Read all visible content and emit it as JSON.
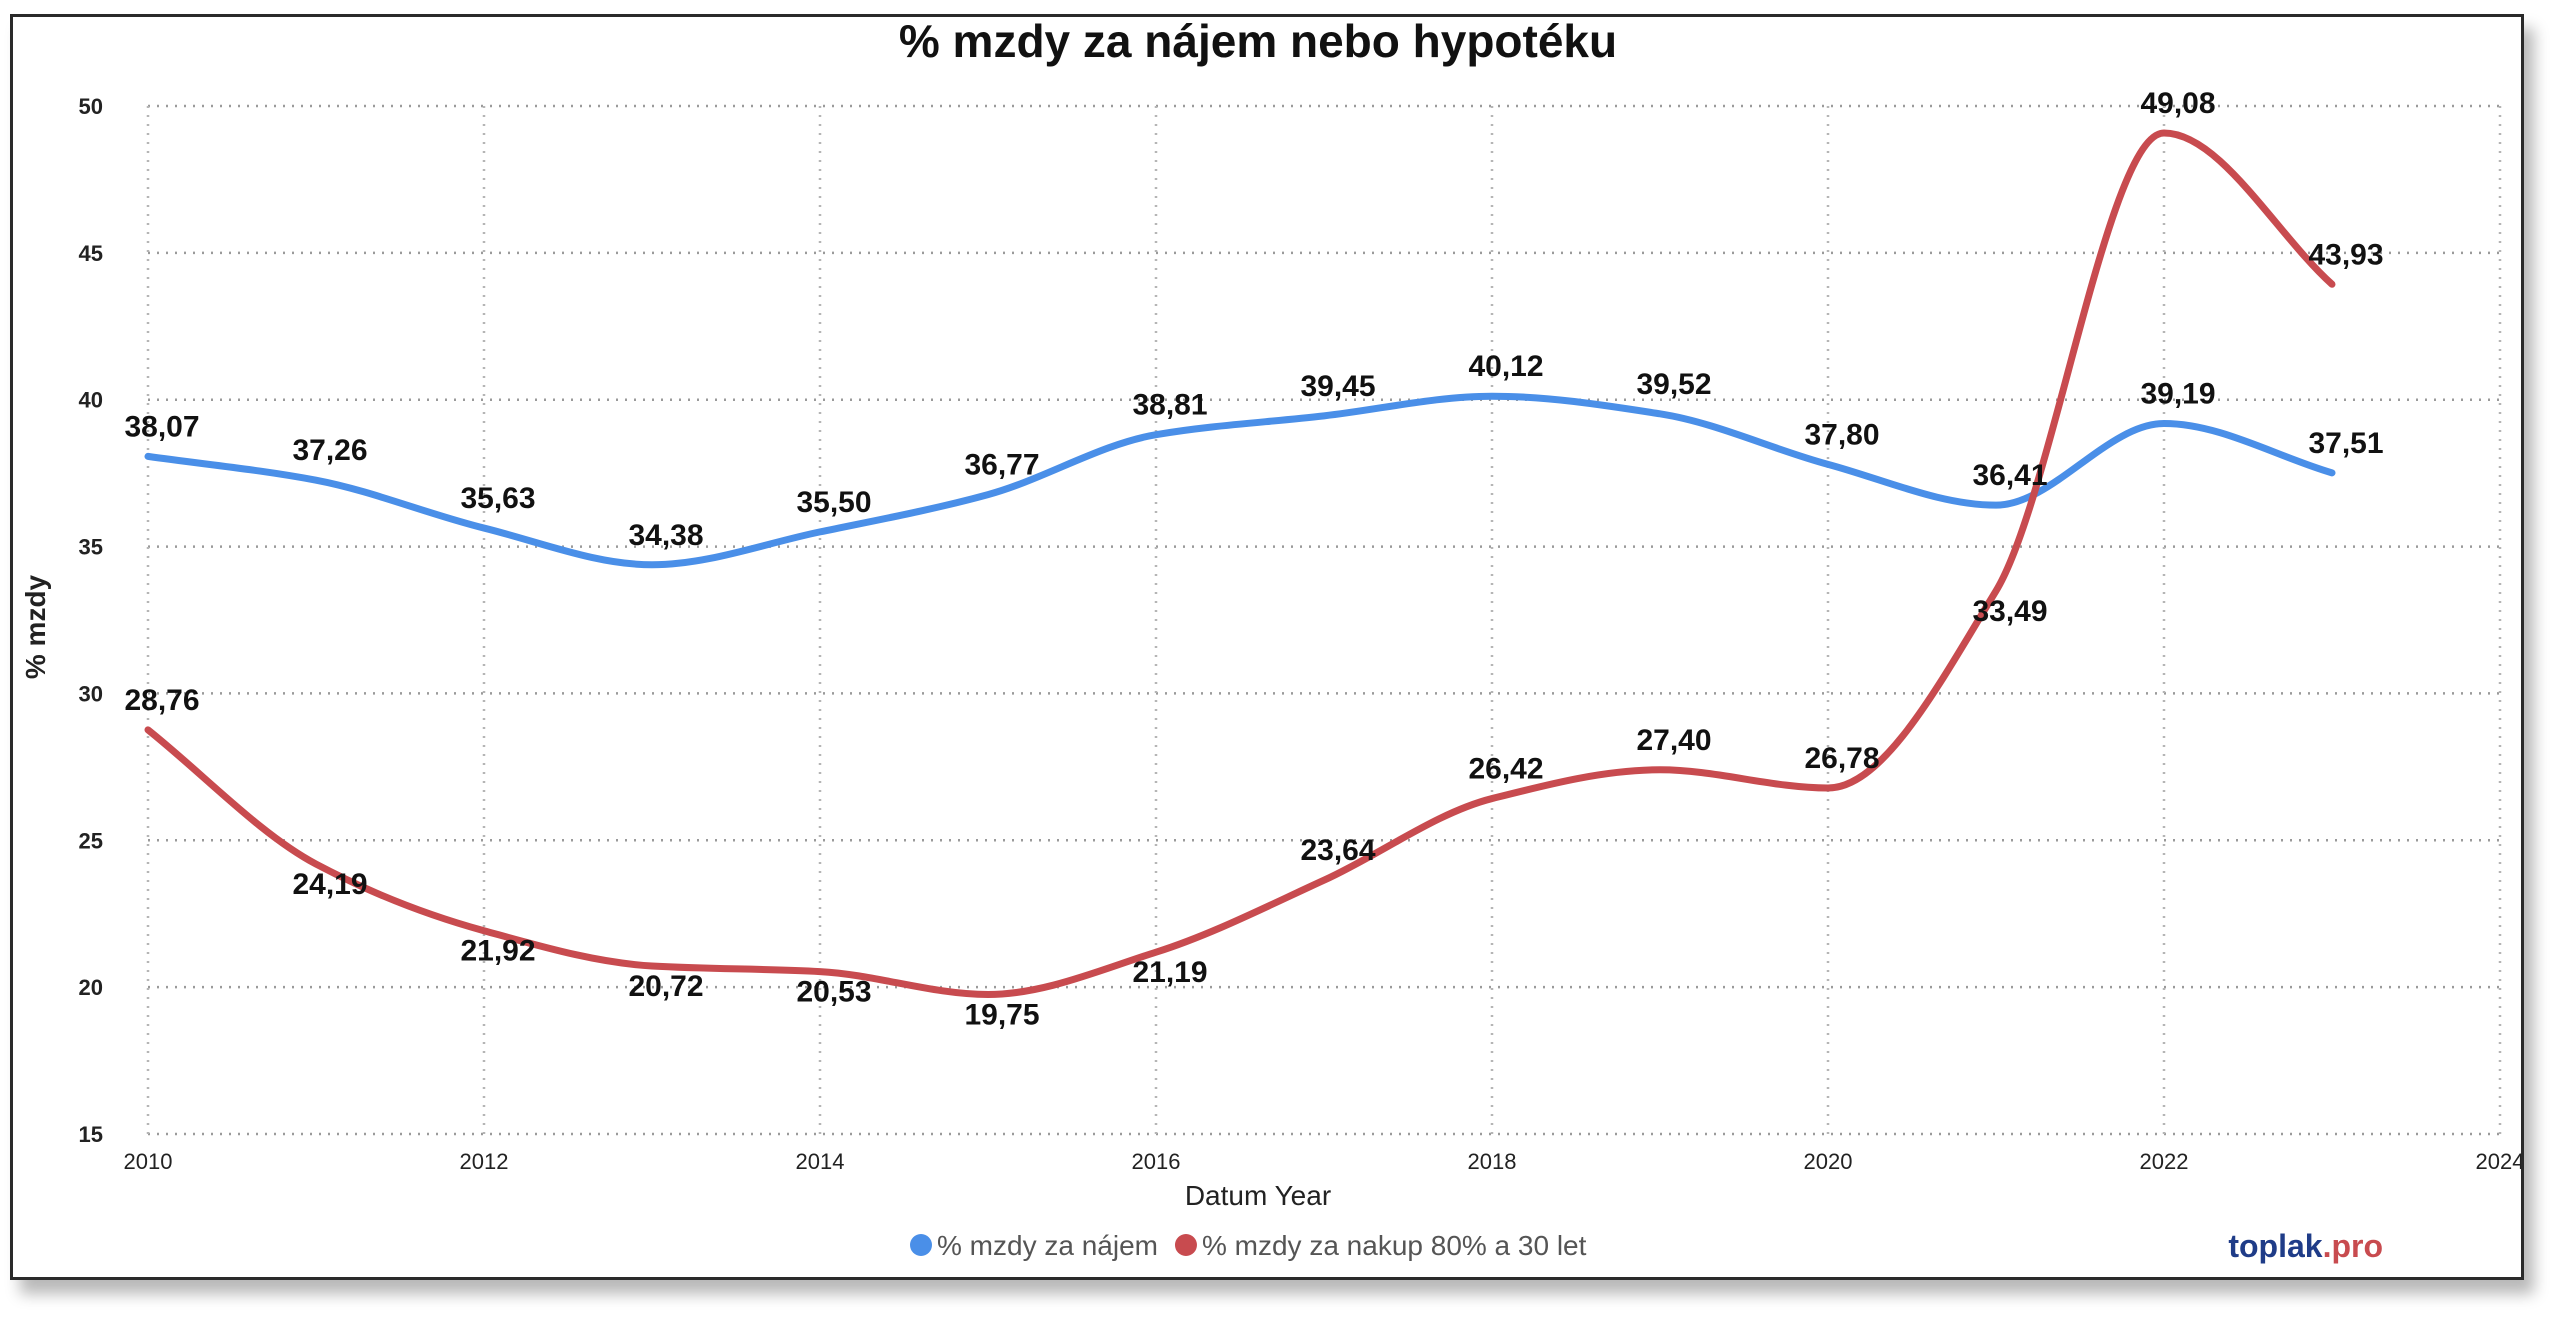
{
  "chart_data": {
    "type": "line",
    "title": "% mzdy za nájem nebo hypotéku",
    "xlabel": "Datum Year",
    "ylabel": "% mzdy",
    "x": [
      2010,
      2011,
      2012,
      2013,
      2014,
      2015,
      2016,
      2017,
      2018,
      2019,
      2020,
      2021,
      2022,
      2023
    ],
    "xlim": [
      2010,
      2024
    ],
    "x_ticks": [
      "2010",
      "2012",
      "2014",
      "2016",
      "2018",
      "2020",
      "2022",
      "2024"
    ],
    "ylim": [
      15,
      50
    ],
    "y_ticks": [
      "15",
      "20",
      "25",
      "30",
      "35",
      "40",
      "45",
      "50"
    ],
    "grid": true,
    "legend_position": "bottom",
    "series": [
      {
        "name": "% mzdy za nájem",
        "color": "#4A8FE8",
        "values": [
          38.07,
          37.26,
          35.63,
          34.38,
          35.5,
          36.77,
          38.81,
          39.45,
          40.12,
          39.52,
          37.8,
          36.41,
          39.19,
          37.51
        ],
        "labels": [
          "38,07",
          "37,26",
          "35,63",
          "34,38",
          "35,50",
          "36,77",
          "38,81",
          "39,45",
          "40,12",
          "39,52",
          "37,80",
          "36,41",
          "39,19",
          "37,51"
        ]
      },
      {
        "name": "% mzdy za nakup 80% a 30 let",
        "color": "#C84B4F",
        "values": [
          28.76,
          24.19,
          21.92,
          20.72,
          20.53,
          19.75,
          21.19,
          23.64,
          26.42,
          27.4,
          26.78,
          33.49,
          49.08,
          43.93
        ],
        "labels": [
          "28,76",
          "24,19",
          "21,92",
          "20,72",
          "20,53",
          "19,75",
          "21,19",
          "23,64",
          "26,42",
          "27,40",
          "26,78",
          "33,49",
          "49,08",
          "43,93"
        ]
      }
    ]
  },
  "brand": {
    "name": "toplak",
    "suffix": ".pro",
    "name_color": "#1F3C88",
    "suffix_color": "#C84B4F"
  }
}
